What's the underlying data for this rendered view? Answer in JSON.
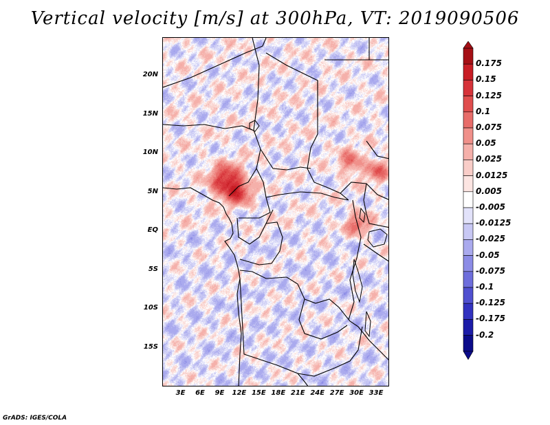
{
  "title": "Vertical velocity [m/s] at 300hPa, VT: 2019090506",
  "footer": "GrADS: IGES/COLA",
  "y_axis": {
    "labels": [
      "20N",
      "15N",
      "10N",
      "5N",
      "EQ",
      "5S",
      "10S",
      "15S"
    ],
    "lat_values": [
      20,
      15,
      10,
      5,
      0,
      -5,
      -10,
      -15
    ],
    "range": [
      -20,
      25
    ]
  },
  "x_axis": {
    "labels": [
      "3E",
      "6E",
      "9E",
      "12E",
      "15E",
      "18E",
      "21E",
      "24E",
      "27E",
      "30E",
      "33E"
    ],
    "lon_values": [
      3,
      6,
      9,
      12,
      15,
      18,
      21,
      24,
      27,
      30,
      33
    ],
    "range": [
      0.2,
      35
    ]
  },
  "colorbar": {
    "labels": [
      "0.175",
      "0.15",
      "0.125",
      "0.1",
      "0.075",
      "0.05",
      "0.025",
      "0.0125",
      "0.005",
      "-0.005",
      "-0.0125",
      "-0.025",
      "-0.05",
      "-0.075",
      "-0.1",
      "-0.125",
      "-0.175",
      "-0.2"
    ],
    "colors": [
      "#a50f15",
      "#c81d25",
      "#d6333a",
      "#e04e4e",
      "#e86d6a",
      "#f0908a",
      "#f5b0aa",
      "#f9cdc8",
      "#fce5e2",
      "#ffffff",
      "#e2e2fa",
      "#c8c8f4",
      "#aaaaee",
      "#8c8ce6",
      "#6e6edc",
      "#5050d0",
      "#3232c0",
      "#1c1ca8",
      "#0c0c8a"
    ]
  },
  "chart_data": {
    "type": "heatmap",
    "title": "Vertical velocity [m/s] at 300hPa, VT: 2019090506",
    "variable": "Vertical velocity",
    "units": "m/s",
    "level": "300hPa",
    "valid_time": "2019090506",
    "lon_range": [
      0.2,
      35
    ],
    "lat_range": [
      -20,
      25
    ],
    "contour_levels": [
      -0.2,
      -0.175,
      -0.125,
      -0.1,
      -0.075,
      -0.05,
      -0.025,
      -0.0125,
      -0.005,
      0.005,
      0.0125,
      0.025,
      0.05,
      0.075,
      0.1,
      0.125,
      0.15,
      0.175
    ],
    "notable_features": [
      {
        "label": "strong ascent",
        "lon": 10,
        "lat": 6.5
      },
      {
        "label": "ascent",
        "lon": 12,
        "lat": 5
      },
      {
        "label": "ascent",
        "lon": 29,
        "lat": 9
      },
      {
        "label": "ascent",
        "lon": 30,
        "lat": 1
      },
      {
        "label": "ascent",
        "lon": 33,
        "lat": 8
      }
    ]
  }
}
